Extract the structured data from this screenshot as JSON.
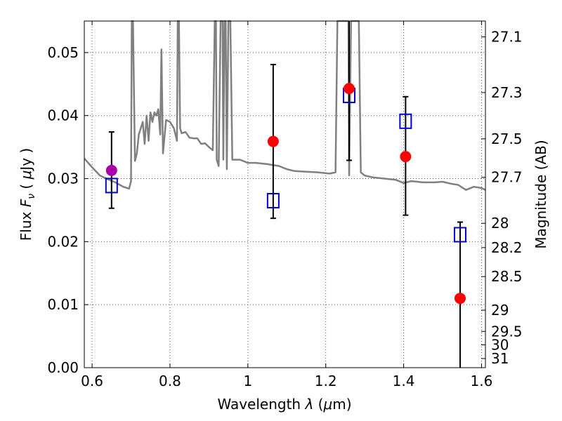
{
  "chart_data": {
    "type": "scatter",
    "xlabel": {
      "pre": "Wavelength  ",
      "greek": "λ",
      "unit_open": " (",
      "mu": "μ",
      "unit_close": "m)"
    },
    "ylabel": {
      "pre": "Flux  ",
      "var": "F",
      "sub": "ν",
      "unit_open": "  ( ",
      "mu": "μ",
      "unit_close": "Jy )"
    },
    "ylabel_right": "Magnitude (AB)",
    "xlim": [
      0.58,
      1.61
    ],
    "ylim": [
      0.0,
      0.055
    ],
    "grid": true,
    "grid_style": "dotted",
    "x_ticks": [
      0.6,
      0.8,
      1.0,
      1.2,
      1.4,
      1.6
    ],
    "x_tick_labels": [
      "0.6",
      "0.8",
      "1",
      "1.2",
      "1.4",
      "1.6"
    ],
    "y_ticks": [
      0.0,
      0.01,
      0.02,
      0.03,
      0.04,
      0.05
    ],
    "y_tick_labels": [
      "0.00",
      "0.01",
      "0.02",
      "0.03",
      "0.04",
      "0.05"
    ],
    "mag_ticks": [
      27.1,
      27.3,
      27.5,
      27.7,
      28,
      28.2,
      28.5,
      29,
      29.5,
      30,
      31
    ],
    "mag_tick_labels": [
      "27.1",
      "27.3",
      "27.5",
      "27.7",
      "28",
      "28.2",
      "28.5",
      "29",
      "29.5",
      "30",
      "31"
    ],
    "colors": {
      "sed": "#808080",
      "observed": "#ff0000",
      "observed_first": "#aa00aa",
      "model": "#0000cc",
      "errorbar": "#000000",
      "grid": "#555555"
    },
    "sed_spectrum": {
      "x": [
        0.58,
        0.6,
        0.62,
        0.64,
        0.66,
        0.68,
        0.695,
        0.7,
        0.702,
        0.705,
        0.71,
        0.715,
        0.72,
        0.73,
        0.735,
        0.74,
        0.745,
        0.75,
        0.755,
        0.76,
        0.765,
        0.77,
        0.775,
        0.778,
        0.782,
        0.79,
        0.8,
        0.81,
        0.818,
        0.82,
        0.823,
        0.826,
        0.83,
        0.84,
        0.85,
        0.86,
        0.87,
        0.88,
        0.89,
        0.9,
        0.91,
        0.915,
        0.918,
        0.92,
        0.925,
        0.93,
        0.935,
        0.937,
        0.94,
        0.943,
        0.946,
        0.95,
        0.955,
        0.96,
        0.98,
        1.0,
        1.02,
        1.05,
        1.08,
        1.1,
        1.12,
        1.15,
        1.18,
        1.21,
        1.225,
        1.23,
        1.24,
        1.25,
        1.255,
        1.258,
        1.26,
        1.265,
        1.27,
        1.28,
        1.285,
        1.29,
        1.3,
        1.32,
        1.35,
        1.38,
        1.4,
        1.42,
        1.45,
        1.48,
        1.5,
        1.52,
        1.54,
        1.56,
        1.58,
        1.6,
        1.61
      ],
      "y": [
        0.0332,
        0.0318,
        0.0305,
        0.0299,
        0.0294,
        0.0287,
        0.0284,
        0.0296,
        0.06,
        0.06,
        0.0328,
        0.034,
        0.037,
        0.039,
        0.0355,
        0.04,
        0.036,
        0.0405,
        0.039,
        0.0405,
        0.04,
        0.041,
        0.037,
        0.0505,
        0.034,
        0.0393,
        0.039,
        0.038,
        0.036,
        0.06,
        0.06,
        0.038,
        0.0372,
        0.0374,
        0.0365,
        0.0364,
        0.0364,
        0.0355,
        0.0356,
        0.035,
        0.0345,
        0.06,
        0.06,
        0.033,
        0.032,
        0.06,
        0.06,
        0.033,
        0.06,
        0.06,
        0.0315,
        0.06,
        0.06,
        0.033,
        0.033,
        0.0325,
        0.0325,
        0.0323,
        0.032,
        0.0315,
        0.0312,
        0.0311,
        0.031,
        0.0308,
        0.031,
        0.06,
        0.06,
        0.06,
        0.06,
        0.06,
        0.0305,
        0.06,
        0.06,
        0.06,
        0.06,
        0.031,
        0.0305,
        0.0302,
        0.03,
        0.0298,
        0.0293,
        0.0296,
        0.0294,
        0.0294,
        0.0295,
        0.0292,
        0.029,
        0.0282,
        0.0287,
        0.0285,
        0.0282
      ]
    },
    "observed": [
      {
        "x": 0.65,
        "y": 0.0313,
        "yerr_low": 0.0253,
        "yerr_high": 0.0374
      },
      {
        "x": 1.065,
        "y": 0.0359,
        "yerr_low": 0.0237,
        "yerr_high": 0.0481
      },
      {
        "x": 1.26,
        "y": 0.0443,
        "yerr_low": 0.0329,
        "yerr_high": 0.06
      },
      {
        "x": 1.405,
        "y": 0.0335,
        "yerr_low": 0.0242,
        "yerr_high": 0.043
      },
      {
        "x": 1.545,
        "y": 0.011,
        "yerr_low": 0.0,
        "yerr_high": 0.0231
      }
    ],
    "model_points": [
      {
        "x": 0.65,
        "y": 0.0289
      },
      {
        "x": 1.065,
        "y": 0.0265
      },
      {
        "x": 1.26,
        "y": 0.0432
      },
      {
        "x": 1.405,
        "y": 0.0391
      },
      {
        "x": 1.545,
        "y": 0.0211
      }
    ]
  }
}
